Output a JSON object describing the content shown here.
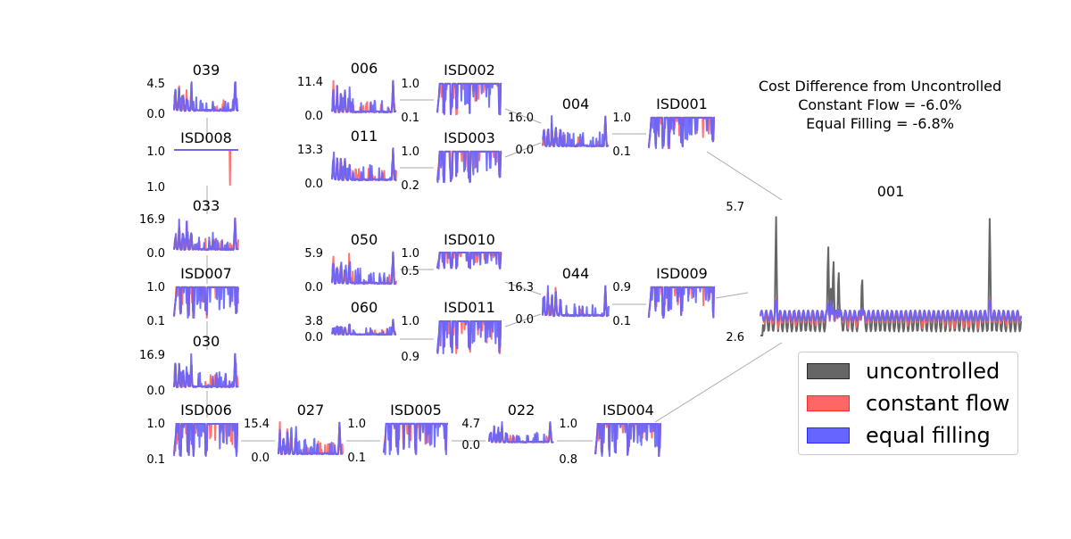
{
  "summary": {
    "title": "Cost Difference from Uncontrolled",
    "constant_flow": "Constant Flow = -6.0%",
    "equal_filling": "Equal Filling = -6.8%"
  },
  "legend": {
    "uncontrolled": "uncontrolled",
    "constant_flow": "constant flow",
    "equal_filling": "equal filling"
  },
  "colors": {
    "uncontrolled": "#555555",
    "constant_flow": "#ff6464",
    "equal_filling": "#6464ff",
    "overlap": "#5a1fb4",
    "connector": "#aaaaaa"
  },
  "chart_data": {
    "type": "line",
    "description_series": [
      "uncontrolled",
      "constant flow",
      "equal filling"
    ],
    "panels": [
      {
        "id": "039",
        "kind": "storage",
        "ymax": "4.5",
        "ymin": "0.0"
      },
      {
        "id": "ISD008",
        "kind": "valve",
        "ymax": "1.0",
        "ymin": "1.0"
      },
      {
        "id": "033",
        "kind": "storage",
        "ymax": "16.9",
        "ymin": "0.0"
      },
      {
        "id": "ISD007",
        "kind": "valve",
        "ymax": "1.0",
        "ymin": "0.1"
      },
      {
        "id": "030",
        "kind": "storage",
        "ymax": "16.9",
        "ymin": "0.0"
      },
      {
        "id": "ISD006",
        "kind": "valve",
        "ymax": "1.0",
        "ymin": "0.1"
      },
      {
        "id": "006",
        "kind": "storage",
        "ymax": "11.4",
        "ymin": "0.0"
      },
      {
        "id": "011",
        "kind": "storage",
        "ymax": "13.3",
        "ymin": "0.0"
      },
      {
        "id": "050",
        "kind": "storage",
        "ymax": "5.9",
        "ymin": "0.0"
      },
      {
        "id": "060",
        "kind": "storage",
        "ymax": "3.8",
        "ymin": "0.0"
      },
      {
        "id": "ISD002",
        "kind": "valve",
        "ymax": "1.0",
        "ymin": "0.1"
      },
      {
        "id": "ISD003",
        "kind": "valve",
        "ymax": "1.0",
        "ymin": "0.2"
      },
      {
        "id": "ISD010",
        "kind": "valve",
        "ymax": "1.0",
        "ymin": "0.5"
      },
      {
        "id": "ISD011",
        "kind": "valve",
        "ymax": "1.0",
        "ymin": "0.9"
      },
      {
        "id": "004",
        "kind": "storage",
        "ymax": "16.0",
        "ymin": "0.0"
      },
      {
        "id": "044",
        "kind": "storage",
        "ymax": "16.3",
        "ymin": "0.0"
      },
      {
        "id": "ISD001",
        "kind": "valve",
        "ymax": "1.0",
        "ymin": "0.1"
      },
      {
        "id": "ISD009",
        "kind": "valve",
        "ymax": "0.9",
        "ymin": "0.1"
      },
      {
        "id": "027",
        "kind": "storage",
        "ymax": "15.4",
        "ymin": "0.0"
      },
      {
        "id": "ISD005",
        "kind": "valve",
        "ymax": "1.0",
        "ymin": "0.1"
      },
      {
        "id": "022",
        "kind": "storage",
        "ymax": "4.7",
        "ymin": "0.0"
      },
      {
        "id": "ISD004",
        "kind": "valve",
        "ymax": "1.0",
        "ymin": "0.8"
      },
      {
        "id": "001",
        "kind": "outfall",
        "ymax": "5.7",
        "ymin": "2.6"
      }
    ]
  }
}
